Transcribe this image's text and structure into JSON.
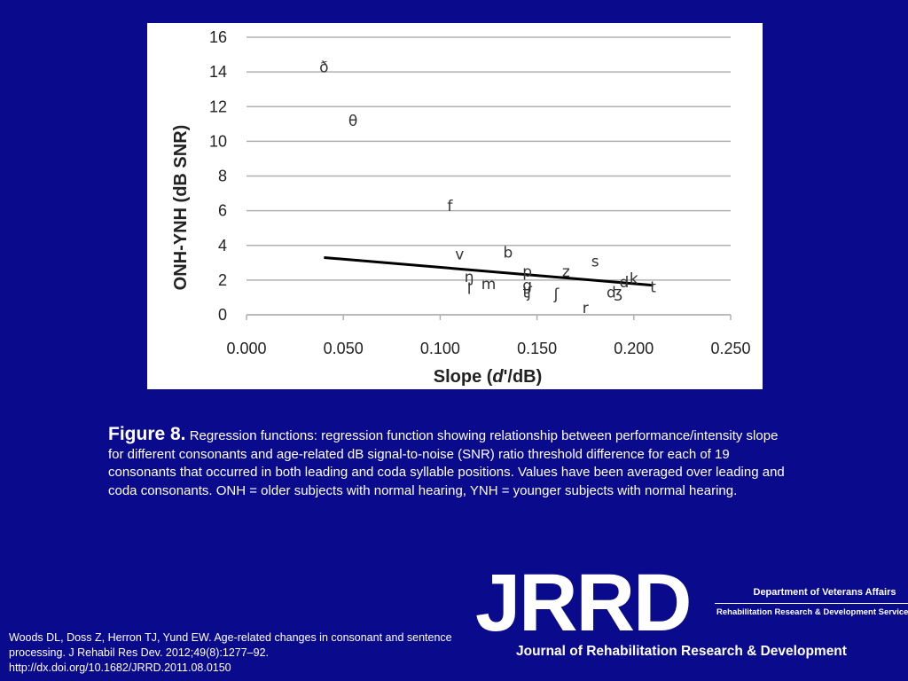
{
  "chart_data": {
    "type": "scatter",
    "xlabel_prefix": "Slope (",
    "xlabel_italic": "d",
    "xlabel_suffix": "'/dB)",
    "ylabel": "ONH-YNH (dB SNR)",
    "xlim": [
      0,
      0.25
    ],
    "ylim": [
      0,
      16
    ],
    "x_ticks": [
      "0.000",
      "0.050",
      "0.100",
      "0.150",
      "0.200",
      "0.250"
    ],
    "y_ticks": [
      "0",
      "2",
      "4",
      "6",
      "8",
      "10",
      "12",
      "14",
      "16"
    ],
    "grid": "horizontal",
    "points": [
      {
        "label": "ð",
        "x": 0.04,
        "y": 14.3
      },
      {
        "label": "θ",
        "x": 0.055,
        "y": 11.2
      },
      {
        "label": "f",
        "x": 0.105,
        "y": 6.3
      },
      {
        "label": "v",
        "x": 0.11,
        "y": 3.5
      },
      {
        "label": "b",
        "x": 0.135,
        "y": 3.6
      },
      {
        "label": "s",
        "x": 0.18,
        "y": 3.1
      },
      {
        "label": "p",
        "x": 0.145,
        "y": 2.5
      },
      {
        "label": "z",
        "x": 0.165,
        "y": 2.5
      },
      {
        "label": "ŋ",
        "x": 0.115,
        "y": 2.2
      },
      {
        "label": "l",
        "x": 0.115,
        "y": 1.5
      },
      {
        "label": "m",
        "x": 0.125,
        "y": 1.8
      },
      {
        "label": "g",
        "x": 0.145,
        "y": 1.7
      },
      {
        "label": "ʧ",
        "x": 0.145,
        "y": 1.3
      },
      {
        "label": "ʃ",
        "x": 0.16,
        "y": 1.2
      },
      {
        "label": "r",
        "x": 0.175,
        "y": 0.4
      },
      {
        "label": "d",
        "x": 0.195,
        "y": 1.9
      },
      {
        "label": "k",
        "x": 0.2,
        "y": 2.1
      },
      {
        "label": "ʤ",
        "x": 0.19,
        "y": 1.3
      },
      {
        "label": "t",
        "x": 0.21,
        "y": 1.6
      }
    ],
    "regression": {
      "x": [
        0.04,
        0.21
      ],
      "y": [
        3.3,
        1.7
      ]
    }
  },
  "caption": {
    "label": "Figure 8.",
    "text": " Regression functions: regression function showing relationship between performance/intensity slope for different consonants and age-related dB signal-to-noise (SNR) ratio threshold difference for each of 19 consonants that occurred in both leading and coda syllable positions. Values have been averaged over leading and coda consonants. ONH = older subjects with normal hearing, YNH = younger subjects with normal hearing."
  },
  "citation": {
    "line1": "Woods DL, Doss Z, Herron TJ, Yund EW. Age-related changes in consonant and sentence processing. J Rehabil Res Dev. 2012;49(8):1277–92.",
    "line2": "http://dx.doi.org/10.1682/JRRD.2011.08.0150"
  },
  "logo": {
    "letters": "JRRD",
    "dept": "Department of Veterans Affairs",
    "service": "Rehabilitation Research & Development Service",
    "journal": "Journal of Rehabilitation Research & Development"
  },
  "colors": {
    "background": "#0a0a8c",
    "chart_background": "#ffffff",
    "gridline": "#b0b0b0",
    "regression_line": "#000000",
    "text": "#ffffff"
  }
}
